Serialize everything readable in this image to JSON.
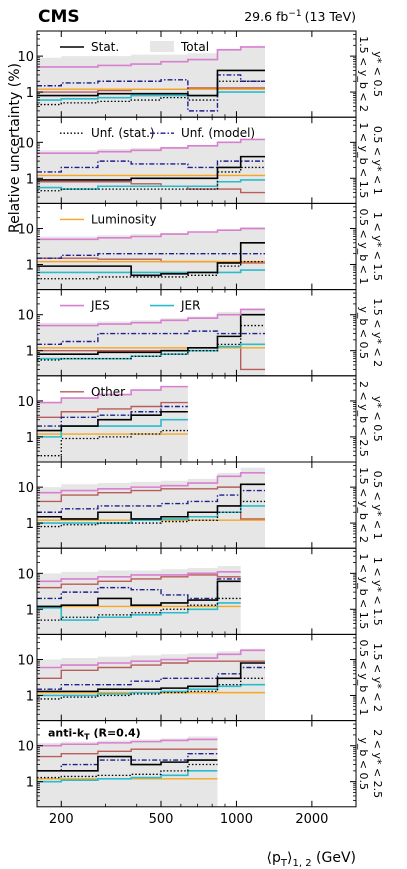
{
  "header": {
    "experiment": "CMS",
    "luminosity": "29.6 fb",
    "lumi_exponent": "−1",
    "energy": "(13 TeV)"
  },
  "axes": {
    "ylabel": "Relative uncertainty (%)",
    "xlabel_base": "⟨p",
    "xlabel_sub_T": "T",
    "xlabel_rest": "⟩",
    "xlabel_sub_12": "1, 2",
    "xlabel_unit": " (GeV)",
    "x_log": true,
    "y_log": true,
    "xlim": [
      160,
      3000
    ],
    "ylim": [
      0.2,
      50
    ],
    "x_ticks": [
      200,
      500,
      1000,
      2000
    ],
    "x_tick_labels": [
      "200",
      "500",
      "1000",
      "2000"
    ],
    "y_ticks": [
      1,
      10
    ],
    "y_tick_labels": [
      "1",
      "10"
    ]
  },
  "colors": {
    "stat": "#000000",
    "total": "#e6e6e6",
    "unf_stat": "#000000",
    "unf_model": "#1f1f8f",
    "lumi": "#f5a623",
    "jes": "#d97fd0",
    "jer": "#2bbccc",
    "other": "#b85c5c"
  },
  "legend_entries": [
    {
      "key": "stat",
      "label": "Stat.",
      "panel": 0,
      "style": "solid"
    },
    {
      "key": "total",
      "label": "Total",
      "panel": 0,
      "style": "band"
    },
    {
      "key": "unf_stat",
      "label": "Unf. (stat.)",
      "panel": 1,
      "style": "dotted"
    },
    {
      "key": "unf_model",
      "label": "Unf. (model)",
      "panel": 1,
      "style": "dashdot"
    },
    {
      "key": "lumi",
      "label": "Luminosity",
      "panel": 2,
      "style": "solid"
    },
    {
      "key": "jes",
      "label": "JES",
      "panel": 3,
      "style": "solid"
    },
    {
      "key": "jer",
      "label": "JER",
      "panel": 3,
      "style": "solid"
    },
    {
      "key": "other",
      "label": "Other",
      "panel": 4,
      "style": "solid"
    }
  ],
  "algorithm_label": "anti-kT (R=0.4)",
  "algorithm_label_parts": {
    "a": "anti-k",
    "sub": "T",
    "b": " (R=0.4)"
  },
  "chart_data": {
    "type": "step",
    "title": "",
    "edges_sets": {
      "A": [
        160,
        200,
        280,
        380,
        500,
        640,
        840,
        1040,
        1300
      ],
      "B": [
        160,
        200,
        280,
        380,
        500,
        640
      ],
      "C": [
        160,
        200,
        280,
        380,
        500,
        640,
        840,
        1040
      ],
      "D": [
        160,
        200,
        280,
        380,
        500,
        640,
        840
      ]
    },
    "panels": [
      {
        "label_line1": "y* < 0.5",
        "label_line2": "1.5 < y_b < 2",
        "edges": "A",
        "series": {
          "total": [
            9,
            10,
            10,
            11,
            11,
            12,
            16,
            18
          ],
          "jes": [
            5,
            5,
            5.5,
            6,
            7,
            8,
            15,
            18
          ],
          "stat": [
            0.8,
            0.8,
            0.9,
            0.9,
            0.9,
            0.8,
            4,
            4
          ],
          "unf_stat": [
            0.45,
            0.5,
            0.55,
            0.6,
            0.7,
            0.6,
            2,
            2
          ],
          "unf_model": [
            1.5,
            1.8,
            2,
            2,
            2.2,
            0.3,
            3,
            2
          ],
          "lumi": [
            1.2,
            1.2,
            1.2,
            1.2,
            1.2,
            1.2,
            1.2,
            1.2
          ],
          "jer": [
            0.6,
            0.65,
            0.7,
            0.8,
            0.8,
            0.8,
            1,
            1
          ],
          "other": [
            1,
            1,
            1.1,
            1.2,
            1.2,
            1.3,
            1.3,
            1.3
          ]
        }
      },
      {
        "label_line1": "0.5 < y* < 1",
        "label_line2": "1 < y_b < 1.5",
        "edges": "A",
        "series": {
          "total": [
            6,
            6,
            6.5,
            7,
            7.5,
            8,
            10,
            12
          ],
          "jes": [
            5,
            5,
            5.5,
            6,
            7,
            8,
            10,
            12
          ],
          "stat": [
            0.9,
            0.9,
            0.9,
            1,
            1,
            1,
            2,
            4
          ],
          "unf_stat": [
            0.45,
            0.5,
            0.5,
            0.5,
            0.5,
            0.5,
            1.5,
            2
          ],
          "unf_model": [
            1.5,
            2,
            3,
            2.5,
            2.5,
            2,
            3,
            3
          ],
          "lumi": [
            1.2,
            1.2,
            1.2,
            1.2,
            1.2,
            1.2,
            1.2,
            1.2
          ],
          "jer": [
            0.55,
            0.5,
            0.6,
            0.6,
            0.6,
            0.6,
            0.8,
            0.9
          ],
          "other": [
            0.8,
            0.8,
            0.8,
            0.7,
            0.6,
            0.5,
            0.5,
            0.4
          ]
        }
      },
      {
        "label_line1": "1 < y* < 1.5",
        "label_line2": "0.5 < y_b < 1",
        "edges": "A",
        "series": {
          "total": [
            6,
            6,
            6.5,
            7,
            7.5,
            8,
            9,
            11
          ],
          "jes": [
            5,
            5,
            5.5,
            6,
            7,
            8,
            9,
            10
          ],
          "stat": [
            0.9,
            0.9,
            0.9,
            0.5,
            0.55,
            0.6,
            1.1,
            4
          ],
          "unf_stat": [
            0.4,
            0.4,
            0.45,
            0.45,
            0.45,
            0.5,
            0.9,
            1.2
          ],
          "unf_model": [
            1.5,
            1.8,
            2,
            2,
            2,
            2,
            2,
            2
          ],
          "lumi": [
            1.2,
            1.2,
            1.2,
            1.2,
            1.2,
            1.2,
            1.2,
            1.2
          ],
          "jer": [
            0.6,
            0.6,
            0.6,
            0.6,
            0.6,
            0.6,
            0.6,
            0.7
          ],
          "other": [
            1.5,
            1.5,
            1.4,
            1.4,
            1.2,
            1.2,
            1.1,
            1.1
          ]
        }
      },
      {
        "label_line1": "1.5 < y* < 2",
        "label_line2": "y_b < 0.5",
        "edges": "A",
        "series": {
          "total": [
            6,
            6,
            6.5,
            7,
            8,
            9,
            12,
            15
          ],
          "jes": [
            5,
            5,
            5.5,
            6,
            7,
            8,
            10,
            14
          ],
          "stat": [
            0.8,
            0.8,
            0.9,
            0.9,
            1,
            1.2,
            2.5,
            10
          ],
          "unf_stat": [
            0.55,
            0.6,
            0.6,
            0.7,
            0.8,
            1,
            1.5,
            5
          ],
          "unf_model": [
            1.5,
            1.8,
            3,
            3,
            3,
            3.5,
            3,
            3
          ],
          "lumi": [
            1.2,
            1.2,
            1.2,
            1.2,
            1.2,
            1.2,
            1.2,
            1.2
          ],
          "jer": [
            0.6,
            0.6,
            0.6,
            0.7,
            0.8,
            1,
            1.3,
            1.5
          ],
          "other": [
            1,
            1,
            1,
            1,
            1,
            1,
            1.2,
            0.3
          ]
        }
      },
      {
        "label_line1": "y* < 0.5",
        "label_line2": "2 < y_b < 2.5",
        "edges": "B",
        "series": {
          "total": [
            9,
            12,
            15,
            20,
            25
          ],
          "jes": [
            9,
            12,
            15,
            20,
            25
          ],
          "stat": [
            1.5,
            2,
            3,
            4,
            5
          ],
          "unf_stat": [
            0.3,
            0.9,
            1,
            1.2,
            1.5
          ],
          "unf_model": [
            2,
            3.5,
            4,
            5,
            7
          ],
          "lumi": [
            1.2,
            1.2,
            1.2,
            1.2,
            1.2
          ],
          "jer": [
            1,
            2,
            2,
            2,
            3
          ],
          "other": [
            3.5,
            5,
            6,
            7,
            9
          ]
        }
      },
      {
        "label_line1": "0.5 < y* < 1",
        "label_line2": "1.5 < y_b < 2",
        "edges": "A",
        "series": {
          "total": [
            10,
            12,
            13,
            14,
            15,
            17,
            25,
            35
          ],
          "jes": [
            7,
            8,
            9,
            10,
            11,
            13,
            20,
            25
          ],
          "stat": [
            1.5,
            1.3,
            2,
            1.3,
            1.5,
            2,
            3,
            12
          ],
          "unf_stat": [
            0.8,
            0.9,
            1,
            1,
            1.1,
            1.2,
            2,
            4
          ],
          "unf_model": [
            2,
            2.5,
            3,
            3,
            3.5,
            4,
            6,
            8
          ],
          "lumi": [
            1.2,
            1.2,
            1.2,
            1.2,
            1.2,
            1.2,
            1.2,
            1.2
          ],
          "jer": [
            1,
            1,
            1,
            1.2,
            1.3,
            1.5,
            2,
            3
          ],
          "other": [
            4,
            6,
            7,
            8,
            9,
            9,
            10,
            1.3
          ]
        }
      },
      {
        "label_line1": "1 < y* < 1.5",
        "label_line2": "1 < y_b < 1.5",
        "edges": "C",
        "series": {
          "total": [
            10,
            11,
            12,
            12,
            13,
            14,
            16
          ],
          "jes": [
            6,
            7,
            8,
            9,
            9,
            10,
            11
          ],
          "stat": [
            1.2,
            1.3,
            2,
            1.3,
            1.5,
            1.8,
            6
          ],
          "unf_stat": [
            0.5,
            0.6,
            0.7,
            0.8,
            1,
            1.3,
            2
          ],
          "unf_model": [
            2,
            3,
            4,
            3.5,
            2.5,
            2,
            7
          ],
          "lumi": [
            1.2,
            1.2,
            1.2,
            1.2,
            1.2,
            1.2,
            1.2
          ],
          "jer": [
            1.1,
            0.5,
            0.6,
            0.7,
            0.8,
            1,
            1.5
          ],
          "other": [
            4,
            5,
            6,
            7,
            8,
            9,
            8
          ]
        }
      },
      {
        "label_line1": "1.5 < y* < 2",
        "label_line2": "0.5 < y_b < 1",
        "edges": "A",
        "series": {
          "total": [
            10,
            11,
            12,
            13,
            14,
            15,
            17,
            20
          ],
          "jes": [
            6,
            7,
            8,
            9,
            10,
            11,
            14,
            18
          ],
          "stat": [
            1.3,
            1.3,
            1.5,
            1.5,
            1.6,
            1.8,
            3,
            8
          ],
          "unf_stat": [
            0.8,
            0.9,
            1,
            1.1,
            1.2,
            1.3,
            2,
            3
          ],
          "unf_model": [
            1.5,
            2,
            2,
            2.5,
            3,
            3,
            4,
            6
          ],
          "lumi": [
            1.2,
            1.2,
            1.2,
            1.2,
            1.2,
            1.2,
            1.2,
            1.2
          ],
          "jer": [
            1,
            1,
            1.1,
            1.2,
            1.3,
            1.5,
            1.8,
            2
          ],
          "other": [
            3,
            5,
            6,
            7,
            8,
            9,
            9,
            9
          ]
        }
      },
      {
        "label_line1": "2 < y* < 2.5",
        "label_line2": "y_b < 0.5",
        "edges": "D",
        "series": {
          "total": [
            12,
            13,
            14,
            15,
            16,
            18
          ],
          "jes": [
            10,
            11,
            12,
            13,
            14,
            15
          ],
          "stat": [
            2,
            2,
            5,
            3,
            3.5,
            4
          ],
          "unf_stat": [
            1.3,
            1.4,
            1.5,
            1.6,
            2,
            3
          ],
          "unf_model": [
            2,
            3,
            4,
            4,
            4,
            6
          ],
          "lumi": [
            1.2,
            1.2,
            1.2,
            1.2,
            1.2,
            1.2
          ],
          "jer": [
            1,
            1.1,
            1.2,
            1.3,
            1.5,
            2
          ],
          "other": [
            5,
            6,
            7,
            8,
            8,
            8
          ]
        }
      }
    ]
  }
}
